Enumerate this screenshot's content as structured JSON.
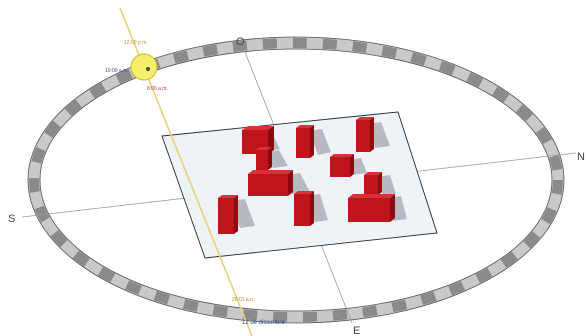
{
  "compass": {
    "north": "N",
    "south": "S",
    "east": "E",
    "west": "O"
  },
  "sun": {
    "times": [
      {
        "label": "12:00 p.m.",
        "color": "#d08a2a"
      },
      {
        "label": "10:00 a.m.",
        "color": "#2d4f8a"
      },
      {
        "label": "8:00 a.m.",
        "color": "#c03a3a"
      }
    ],
    "setting_label": "20:01 a.n.",
    "date_label": "12 de diciembre"
  },
  "colors": {
    "building": "#c0141c",
    "plane": "#eef3f8",
    "sun_disc": "#f4ee6a",
    "sun_path": "#e8d27a",
    "ring_dark": "#8a8a8a"
  }
}
